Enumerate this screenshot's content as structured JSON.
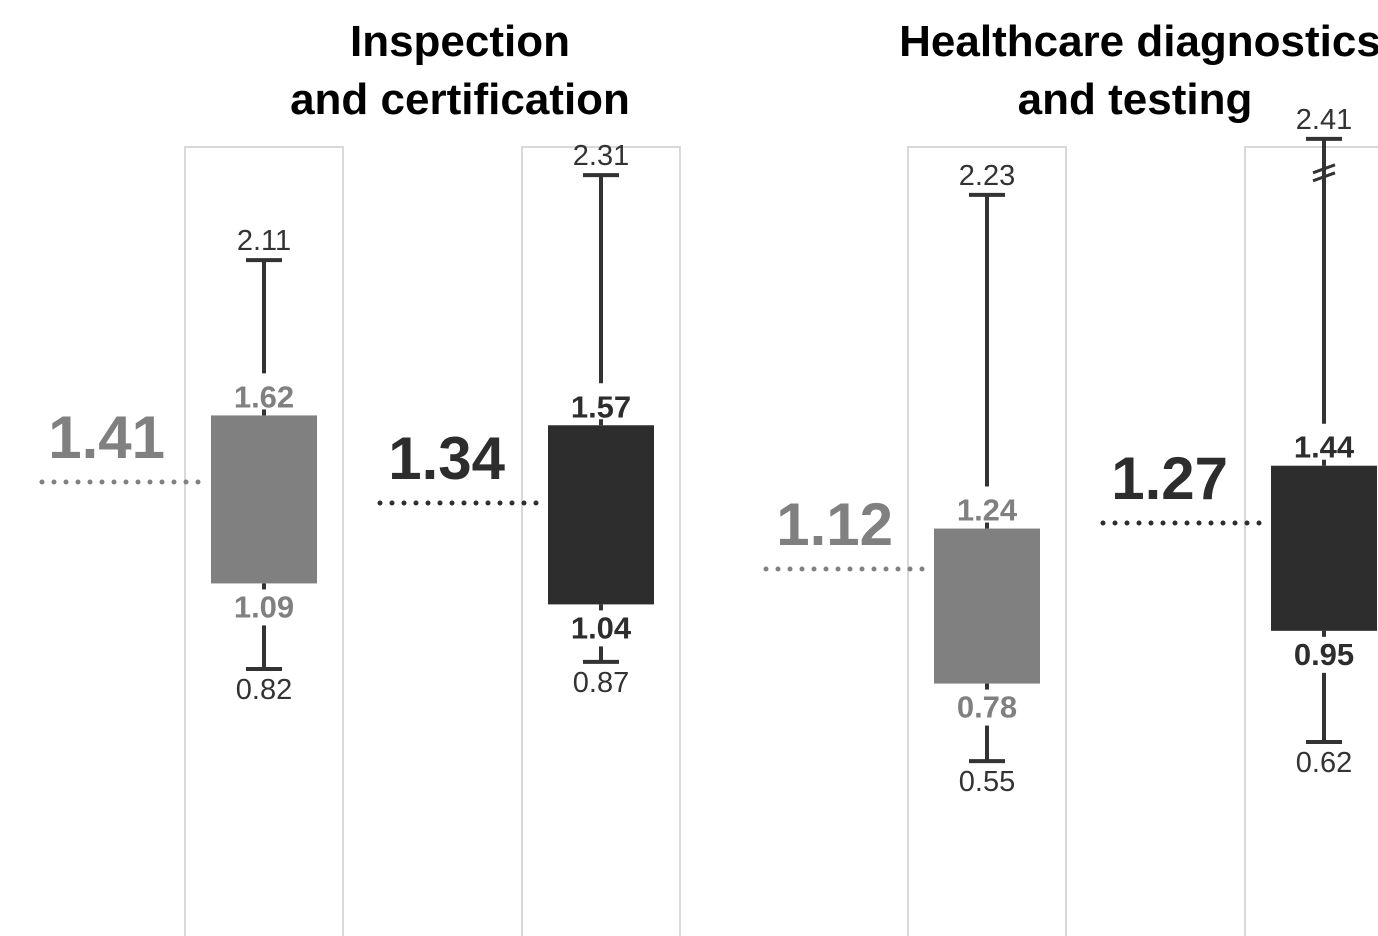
{
  "chart_data": {
    "type": "box",
    "colors": {
      "light": "#808080",
      "dark": "#2d2d2d",
      "frame": "#d9d9d9",
      "whisker": "#333333"
    },
    "groups": [
      {
        "title_line1": "Inspection",
        "title_line2": "and certification",
        "boxes": [
          {
            "shade": "light",
            "min": 0.82,
            "min_label": "0.82",
            "q1": 1.09,
            "q1_label": "1.09",
            "median": 1.41,
            "median_label": "1.41",
            "q3": 1.62,
            "q3_label": "1.62",
            "max": 2.11,
            "max_label": "2.11",
            "broken_top": false
          },
          {
            "shade": "dark",
            "min": 0.87,
            "min_label": "0.87",
            "q1": 1.04,
            "q1_label": "1.04",
            "median": 1.34,
            "median_label": "1.34",
            "q3": 1.57,
            "q3_label": "1.57",
            "max": 2.31,
            "max_label": "2.31",
            "broken_top": false
          }
        ]
      },
      {
        "title_line1": "Healthcare diagnostics",
        "title_line2": "and testing",
        "boxes": [
          {
            "shade": "light",
            "min": 0.55,
            "min_label": "0.55",
            "q1": 0.78,
            "q1_label": "0.78",
            "median": 1.12,
            "median_label": "1.12",
            "q3": 1.24,
            "q3_label": "1.24",
            "max": 2.23,
            "max_label": "2.23",
            "broken_top": false
          },
          {
            "shade": "dark",
            "min": 0.62,
            "min_label": "0.62",
            "q1": 0.95,
            "q1_label": "0.95",
            "median": 1.27,
            "median_label": "1.27",
            "q3": 1.44,
            "q3_label": "1.44",
            "max": 2.41,
            "max_label": "2.41",
            "broken_top": true
          }
        ]
      }
    ]
  }
}
